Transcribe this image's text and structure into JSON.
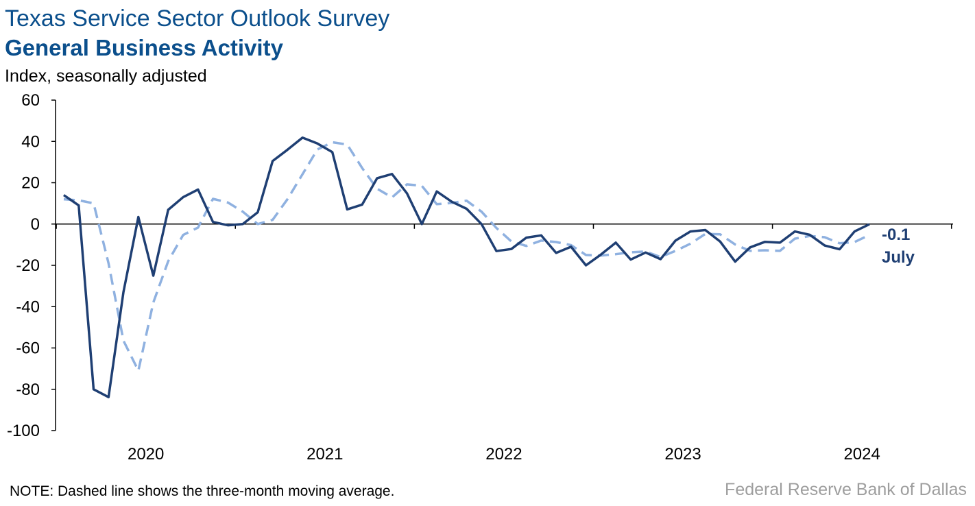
{
  "header": {
    "title": "Texas Service Sector Outlook Survey",
    "subtitle": "General Business Activity",
    "unit_label": "Index, seasonally adjusted"
  },
  "footer": {
    "note": "NOTE: Dashed line shows the three-month moving average.",
    "source": "Federal Reserve Bank of Dallas"
  },
  "annotation": {
    "value_label": "-0.1",
    "month_label": "July"
  },
  "colors": {
    "solid_series": "#1f3f73",
    "dashed_series": "#8fb1e0",
    "axis": "#000000"
  },
  "chart_data": {
    "type": "line",
    "title": "General Business Activity",
    "ylabel": "Index, seasonally adjusted",
    "ylim": [
      -100,
      60
    ],
    "y_ticks": [
      60,
      40,
      20,
      0,
      -20,
      -40,
      -60,
      -80,
      -100
    ],
    "x_tick_labels": [
      "2020",
      "2021",
      "2022",
      "2023",
      "2024"
    ],
    "x_start": "2020-01",
    "x_end": "2024-07",
    "grid": false,
    "legend": "none",
    "series": [
      {
        "style": "solid",
        "values": [
          14,
          9,
          -80,
          -83.8,
          -33,
          3.4,
          -25,
          6.9,
          13,
          16.7,
          1,
          -0.6,
          0,
          5.7,
          30.5,
          36,
          41.8,
          39,
          34.8,
          7.1,
          9.4,
          22.2,
          24.2,
          14.9,
          0,
          15.8,
          10.8,
          7.4,
          0,
          -13.1,
          -12.1,
          -6.6,
          -5.5,
          -14,
          -11,
          -20,
          -14.8,
          -9,
          -17.2,
          -13.8,
          -17,
          -8,
          -3.6,
          -2.9,
          -8.5,
          -18.2,
          -11.3,
          -8.6,
          -9,
          -3.6,
          -5.2,
          -10.4,
          -12.2,
          -3.6,
          -0.1
        ]
      },
      {
        "style": "dashed",
        "values": [
          12,
          11.5,
          10,
          -19,
          -56.4,
          -71,
          -38,
          -18,
          -5.3,
          -1.7,
          12.2,
          10.4,
          6,
          0,
          2,
          12.1,
          24.1,
          36.1,
          39.6,
          38.5,
          27.1,
          17.1,
          12.9,
          19.2,
          18.5,
          9.6,
          10.2,
          11.3,
          6,
          -1.9,
          -8.4,
          -10.6,
          -8,
          -8.7,
          -10.2,
          -15,
          -15.3,
          -14.6,
          -13.7,
          -13.3,
          -16,
          -13,
          -9.5,
          -4.8,
          -5,
          -9.9,
          -13,
          -12.7,
          -13,
          -7.1,
          -5.8,
          -6.4,
          -9.3,
          -8.7,
          -5.3
        ]
      }
    ]
  }
}
